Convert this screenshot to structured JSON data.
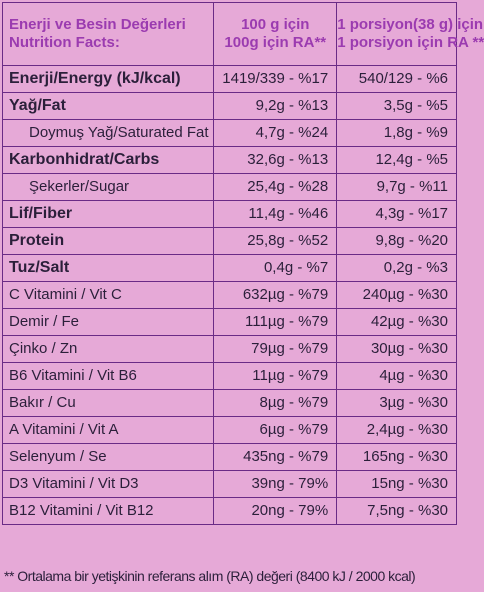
{
  "header": {
    "col1_line1": "Enerji ve Besin Değerleri",
    "col1_line2": "Nutrition Facts:",
    "col2_line1": "100 g için",
    "col2_line2": "100g için RA**",
    "col3_line1": "1 porsiyon(38 g)  için",
    "col3_line2": "1 porsiyon için RA **"
  },
  "rows": [
    {
      "label": "Enerji/Energy (kJ/kcal)",
      "per100": "1419/339 - %17",
      "perServing": "540/129 -  %6"
    },
    {
      "label": "Yağ/Fat",
      "per100": "9,2g - %13",
      "perServing": "3,5g - %5"
    },
    {
      "label": "Doymuş Yağ/Saturated Fat",
      "per100": "4,7g - %24",
      "perServing": "1,8g - %9"
    },
    {
      "label": "Karbonhidrat/Carbs",
      "per100": "32,6g - %13",
      "perServing": "12,4g - %5"
    },
    {
      "label": "Şekerler/Sugar",
      "per100": "25,4g - %28",
      "perServing": "9,7g - %11"
    },
    {
      "label": "Lif/Fiber",
      "per100": "11,4g - %46",
      "perServing": "4,3g - %17"
    },
    {
      "label": "Protein",
      "per100": "25,8g - %52",
      "perServing": "9,8g - %20"
    },
    {
      "label": "Tuz/Salt",
      "per100": "0,4g - %7",
      "perServing": "0,2g - %3"
    },
    {
      "label": "C Vitamini / Vit C",
      "per100": "632µg - %79",
      "perServing": "240µg - %30"
    },
    {
      "label": "Demir / Fe",
      "per100": "111µg   - %79",
      "perServing": "42µg - %30"
    },
    {
      "label": "Çinko / Zn",
      "per100": "79µg - %79",
      "perServing": "30µg - %30"
    },
    {
      "label": "B6 Vitamini / Vit B6",
      "per100": "11µg - %79",
      "perServing": "4µg - %30"
    },
    {
      "label": "Bakır / Cu",
      "per100": "8µg - %79",
      "perServing": "3µg - %30"
    },
    {
      "label": "A Vitamini / Vit A",
      "per100": "6µg - %79",
      "perServing": "2,4µg - %30"
    },
    {
      "label": "Selenyum / Se",
      "per100": "435ng - %79",
      "perServing": "165ng - %30"
    },
    {
      "label": "D3 Vitamini / Vit D3",
      "per100": "39ng - 79%",
      "perServing": "15ng  - %30"
    },
    {
      "label": "B12 Vitamini / Vit B12",
      "per100": "20ng - 79%",
      "perServing": "7,5ng - %30"
    }
  ],
  "footnote": "** Ortalama bir yetişkinin referans alım (RA) değeri (8400 kJ / 2000 kcal)"
}
